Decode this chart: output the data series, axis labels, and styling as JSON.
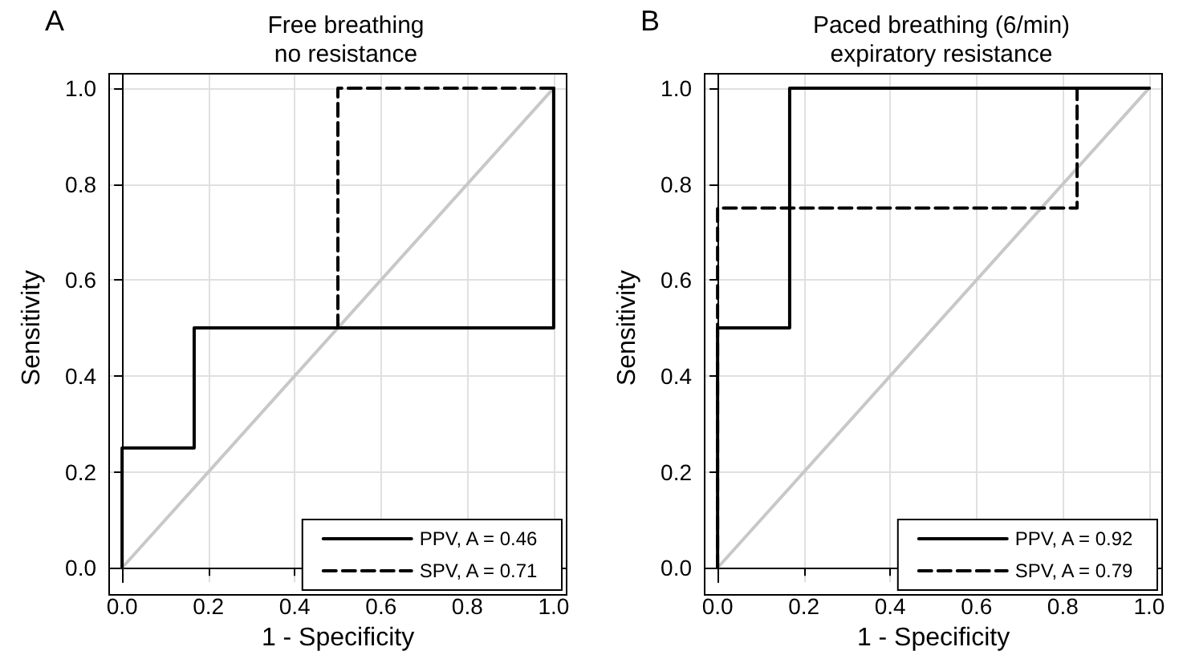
{
  "chart_data": [
    {
      "type": "line",
      "title": "Free breathing\nno resistance",
      "xlabel": "1 - Specificity",
      "ylabel": "Sensitivity",
      "annotations": [
        "A"
      ],
      "xlim": [
        -0.03,
        1.03
      ],
      "ylim": [
        -0.03,
        1.03
      ],
      "xticks": [
        {
          "value": 0,
          "label": "0.0"
        },
        {
          "value": 0.2,
          "label": "0.2"
        },
        {
          "value": 0.4,
          "label": "0.4"
        },
        {
          "value": 0.6,
          "label": "0.6"
        },
        {
          "value": 0.8,
          "label": "0.8"
        },
        {
          "value": 1,
          "label": "1.0"
        }
      ],
      "yticks": [
        {
          "value": 0,
          "label": "0.0"
        },
        {
          "value": 0.2,
          "label": "0.2"
        },
        {
          "value": 0.4,
          "label": "0.4"
        },
        {
          "value": 0.6,
          "label": "0.6"
        },
        {
          "value": 0.8,
          "label": "0.8"
        },
        {
          "value": 1,
          "label": "1.0"
        }
      ],
      "grid": true,
      "legend": "bottom right",
      "marker": "none",
      "series": [
        {
          "color": "#c8c8c8",
          "line_style": "solid",
          "x": [
            0,
            1
          ],
          "values": [
            0,
            1
          ]
        },
        {
          "name": "PPV, A = 0.46",
          "color": "#000000",
          "line_style": "solid",
          "x": [
            0,
            0,
            0.167,
            0.167,
            1,
            1
          ],
          "values": [
            0,
            0.25,
            0.25,
            0.5,
            0.5,
            1
          ]
        },
        {
          "name": "SPV, A = 0.71",
          "color": "#000000",
          "line_style": "dashed",
          "x": [
            0.5,
            0.5,
            1
          ],
          "values": [
            0.5,
            1,
            1
          ]
        }
      ]
    },
    {
      "type": "line",
      "title": "Paced breathing (6/min)\nexpiratory resistance",
      "xlabel": "1 - Specificity",
      "ylabel": "Sensitivity",
      "annotations": [
        "B"
      ],
      "xlim": [
        -0.03,
        1.03
      ],
      "ylim": [
        -0.03,
        1.03
      ],
      "xticks": [
        {
          "value": 0,
          "label": "0.0"
        },
        {
          "value": 0.2,
          "label": "0.2"
        },
        {
          "value": 0.4,
          "label": "0.4"
        },
        {
          "value": 0.6,
          "label": "0.6"
        },
        {
          "value": 0.8,
          "label": "0.8"
        },
        {
          "value": 1,
          "label": "1.0"
        }
      ],
      "yticks": [
        {
          "value": 0,
          "label": "0.0"
        },
        {
          "value": 0.2,
          "label": "0.2"
        },
        {
          "value": 0.4,
          "label": "0.4"
        },
        {
          "value": 0.6,
          "label": "0.6"
        },
        {
          "value": 0.8,
          "label": "0.8"
        },
        {
          "value": 1,
          "label": "1.0"
        }
      ],
      "grid": true,
      "legend": "bottom right",
      "marker": "none",
      "series": [
        {
          "color": "#c8c8c8",
          "line_style": "solid",
          "x": [
            0,
            1
          ],
          "values": [
            0,
            1
          ]
        },
        {
          "name": "PPV, A = 0.92",
          "color": "#000000",
          "line_style": "solid",
          "x": [
            0,
            0,
            0.167,
            0.167,
            1
          ],
          "values": [
            0,
            0.5,
            0.5,
            1,
            1
          ]
        },
        {
          "name": "SPV, A = 0.79",
          "color": "#000000",
          "line_style": "dashed",
          "x": [
            0,
            0,
            0.833,
            0.833,
            1
          ],
          "values": [
            0,
            0.75,
            0.75,
            1,
            1
          ]
        }
      ]
    }
  ]
}
